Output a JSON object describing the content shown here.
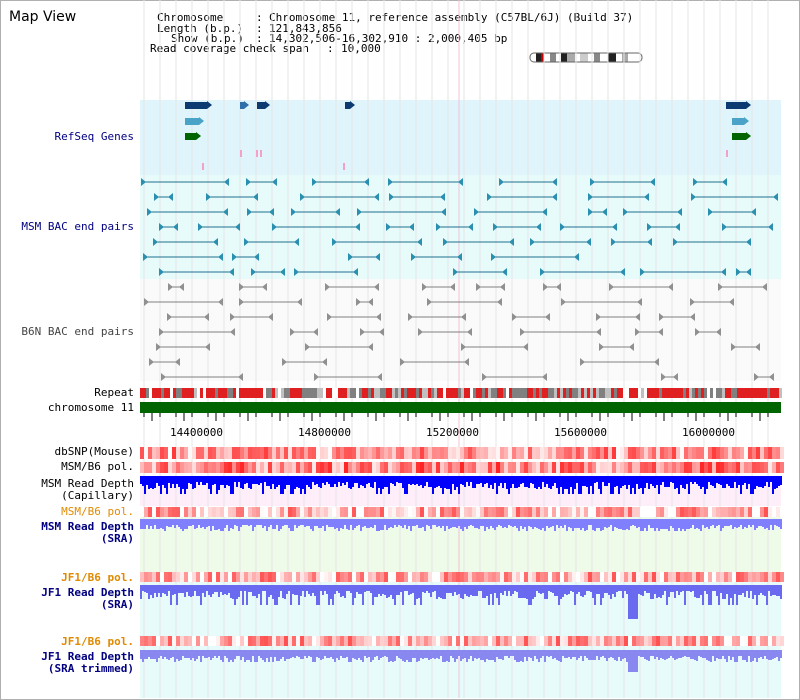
{
  "title": "Map View",
  "info": {
    "chromosome_key": "Chromosome",
    "chromosome_val": "Chromosome 11, reference assembly (C57BL/6J) (Build 37)",
    "length_key": "Length (b.p.)",
    "length_val": "121,843,856",
    "show_key": "Show (b.p.)",
    "show_val": "14,302,506-16,302,910 : 2,000,405 bp",
    "coverage_key": "Read coverage check span",
    "coverage_val": "10,000"
  },
  "tracks": {
    "refseq": "RefSeq Genes",
    "msm_bac": "MSM BAC end pairs",
    "b6n_bac": "B6N BAC end pairs",
    "repeat": "Repeat",
    "chromosome": "chromosome 11",
    "dbsnp": "dbSNP(Mouse)",
    "msm_b6_pol": "MSM/B6 pol.",
    "msm_depth_cap_1": "MSM Read Depth",
    "msm_depth_cap_2": "(Capillary)",
    "msm_b6_pol_2": "MSM/B6 pol.",
    "msm_depth_sra_1": "MSM Read Depth",
    "msm_depth_sra_2": "(SRA)",
    "jf1_b6_pol": "JF1/B6 pol.",
    "jf1_depth_sra_1": "JF1 Read Depth",
    "jf1_depth_sra_2": "(SRA)",
    "jf1_b6_pol_2": "JF1/B6 pol.",
    "jf1_depth_trim_1": "JF1 Read Depth",
    "jf1_depth_trim_2": "(SRA trimmed)"
  },
  "axis_ticks": [
    "14400000",
    "14800000",
    "15200000",
    "15600000",
    "16000000"
  ],
  "colors": {
    "refseq_bg": "#dff4fb",
    "bac_bg": "#e8fbfb",
    "b6n_bg": "#fafafa",
    "chromosome": "#006400",
    "navy_label": "#000080",
    "orange_label": "#e08a00",
    "depth_blue": "#0000ff",
    "depth_light_blue": "#8080ff"
  }
}
